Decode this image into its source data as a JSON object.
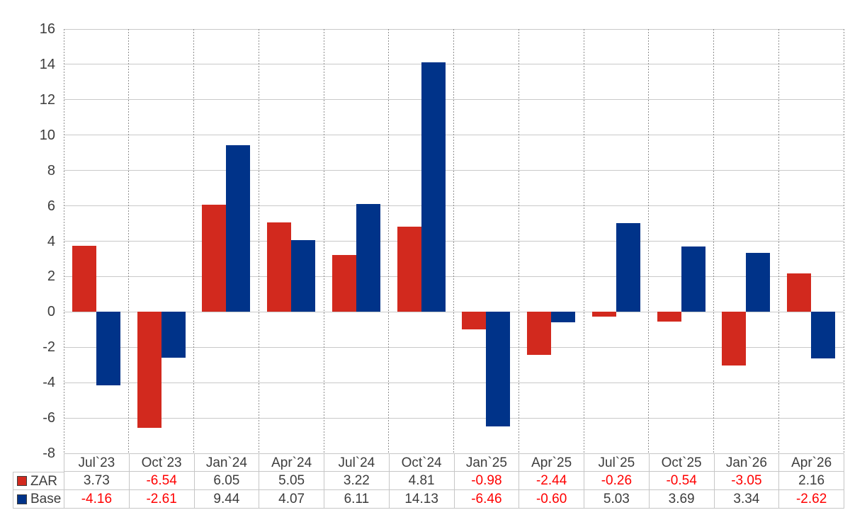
{
  "chart_data": {
    "type": "bar",
    "title": "",
    "categories": [
      "Jul`23",
      "Oct`23",
      "Jan`24",
      "Apr`24",
      "Jul`24",
      "Oct`24",
      "Jan`25",
      "Apr`25",
      "Jul`25",
      "Oct`25",
      "Jan`26",
      "Apr`26"
    ],
    "series": [
      {
        "name": "ZAR",
        "color": "#d2291e",
        "values": [
          3.73,
          -6.54,
          6.05,
          5.05,
          3.22,
          4.81,
          -0.98,
          -2.44,
          -0.26,
          -0.54,
          -3.05,
          2.16
        ]
      },
      {
        "name": "Base",
        "color": "#003389",
        "values": [
          -4.16,
          -2.61,
          9.44,
          4.07,
          6.11,
          14.13,
          -6.46,
          -0.6,
          5.03,
          3.69,
          3.34,
          -2.62
        ]
      }
    ],
    "xlabel": "",
    "ylabel": "",
    "ylim": [
      -8,
      16
    ],
    "ytick_step": 2,
    "ytick_labels": [
      "-8",
      "-6",
      "-4",
      "-2",
      "0",
      "2",
      "4",
      "6",
      "8",
      "10",
      "12",
      "14",
      "16"
    ],
    "grid": "horizontal-solid-vertical-dashed",
    "legend_position": "bottom-table-left-column",
    "value_decimals": 2,
    "colors": {
      "positive_text": "#3d3d3d",
      "negative_text": "#ff0000",
      "h_gridline": "#c9c9c9",
      "v_gridline": "#8f8f8f",
      "table_border": "#c6c6c6",
      "background": "#ffffff"
    }
  }
}
